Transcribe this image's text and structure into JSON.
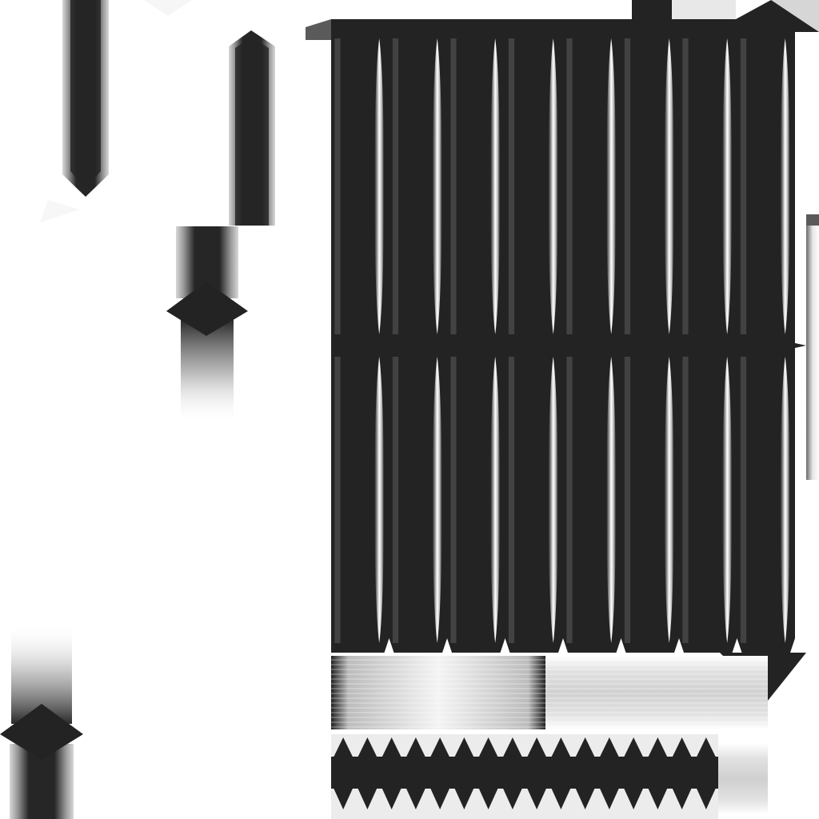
{
  "texture": {
    "kind": "grayscale-uv-texture-atlas",
    "colors": {
      "background": "#ffffff",
      "dark": "#232323",
      "mid": "#9a9a9a",
      "light": "#d6d6d6",
      "edge": "#5a5a5a"
    },
    "main_panel": {
      "column_count": 8,
      "waist_count": 1
    },
    "bottom_strip": {
      "spike_count": 16
    }
  }
}
